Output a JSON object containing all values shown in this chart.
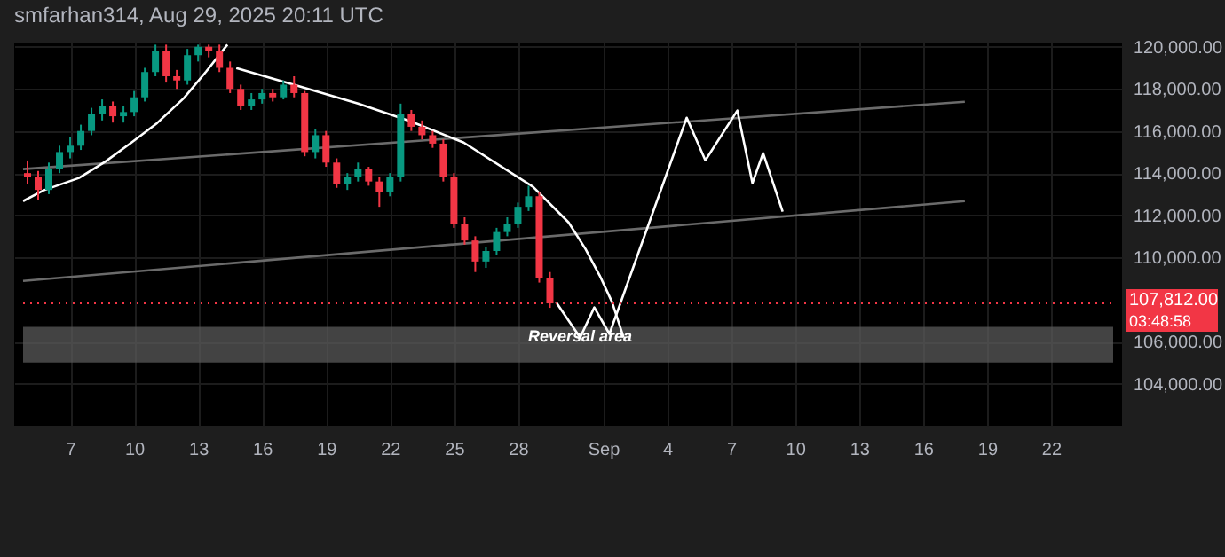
{
  "chart_data": {
    "type": "candlestick",
    "title": "smfarhan314, Aug 29, 2025 20:11 UTC",
    "x": [
      "2025-08-05T00:00",
      "2025-08-05T12:00",
      "2025-08-06T00:00",
      "2025-08-06T12:00",
      "2025-08-07T00:00",
      "2025-08-07T12:00",
      "2025-08-08T00:00",
      "2025-08-08T12:00",
      "2025-08-09T00:00",
      "2025-08-09T12:00",
      "2025-08-10T00:00",
      "2025-08-10T12:00",
      "2025-08-11T00:00",
      "2025-08-11T12:00",
      "2025-08-12T00:00",
      "2025-08-12T12:00",
      "2025-08-13T00:00",
      "2025-08-13T12:00",
      "2025-08-14T00:00",
      "2025-08-14T12:00",
      "2025-08-15T00:00",
      "2025-08-15T12:00",
      "2025-08-16T00:00",
      "2025-08-16T12:00",
      "2025-08-17T00:00",
      "2025-08-17T12:00",
      "2025-08-18T00:00",
      "2025-08-18T12:00",
      "2025-08-19T00:00",
      "2025-08-19T12:00",
      "2025-08-20T00:00",
      "2025-08-20T12:00",
      "2025-08-21T00:00",
      "2025-08-21T12:00",
      "2025-08-22T00:00",
      "2025-08-22T12:00",
      "2025-08-23T00:00",
      "2025-08-23T12:00",
      "2025-08-24T00:00",
      "2025-08-24T12:00",
      "2025-08-25T00:00",
      "2025-08-25T12:00",
      "2025-08-26T00:00",
      "2025-08-26T12:00",
      "2025-08-27T00:00",
      "2025-08-27T12:00",
      "2025-08-28T00:00",
      "2025-08-28T12:00",
      "2025-08-29T00:00",
      "2025-08-29T12:00"
    ],
    "ohlc": [
      [
        114000,
        114600,
        113500,
        113800
      ],
      [
        113800,
        114100,
        112700,
        113200
      ],
      [
        113200,
        114500,
        113000,
        114200
      ],
      [
        114200,
        115300,
        114000,
        115000
      ],
      [
        115000,
        115700,
        114700,
        115300
      ],
      [
        115300,
        116300,
        115100,
        116000
      ],
      [
        116000,
        117100,
        115800,
        116800
      ],
      [
        116800,
        117500,
        116500,
        117200
      ],
      [
        117200,
        117400,
        116400,
        116700
      ],
      [
        116700,
        117200,
        116400,
        116900
      ],
      [
        116900,
        117900,
        116700,
        117600
      ],
      [
        117600,
        119000,
        117400,
        118800
      ],
      [
        118800,
        120100,
        118600,
        119800
      ],
      [
        119800,
        120100,
        118300,
        118600
      ],
      [
        118600,
        118900,
        118000,
        118400
      ],
      [
        118400,
        119900,
        118200,
        119600
      ],
      [
        119600,
        120100,
        119300,
        120000
      ],
      [
        120000,
        120100,
        119500,
        119800
      ],
      [
        119800,
        120100,
        118800,
        119000
      ],
      [
        119000,
        119300,
        117800,
        118000
      ],
      [
        118000,
        118200,
        117000,
        117200
      ],
      [
        117200,
        117800,
        117000,
        117500
      ],
      [
        117500,
        118000,
        117300,
        117800
      ],
      [
        117800,
        118000,
        117400,
        117600
      ],
      [
        117600,
        118400,
        117500,
        118200
      ],
      [
        118200,
        118600,
        117600,
        117800
      ],
      [
        117800,
        117900,
        114800,
        115000
      ],
      [
        115000,
        116100,
        114700,
        115800
      ],
      [
        115800,
        116000,
        114300,
        114500
      ],
      [
        114500,
        114700,
        113300,
        113500
      ],
      [
        113500,
        114000,
        113200,
        113800
      ],
      [
        113800,
        114500,
        113600,
        114200
      ],
      [
        114200,
        114300,
        113400,
        113600
      ],
      [
        113600,
        113800,
        112400,
        113100
      ],
      [
        113100,
        114000,
        112900,
        113800
      ],
      [
        113800,
        117300,
        113600,
        116800
      ],
      [
        116800,
        117000,
        116000,
        116200
      ],
      [
        116200,
        116500,
        115600,
        115800
      ],
      [
        115800,
        116000,
        115200,
        115400
      ],
      [
        115400,
        115600,
        113600,
        113800
      ],
      [
        113800,
        114000,
        111400,
        111600
      ],
      [
        111600,
        111900,
        110600,
        110800
      ],
      [
        110800,
        111000,
        109300,
        109800
      ],
      [
        109800,
        110500,
        109500,
        110300
      ],
      [
        110300,
        111400,
        110100,
        111200
      ],
      [
        111200,
        111900,
        111000,
        111600
      ],
      [
        111600,
        112600,
        111400,
        112400
      ],
      [
        112400,
        113400,
        112200,
        112900
      ],
      [
        112900,
        113100,
        108800,
        109000
      ],
      [
        109000,
        109300,
        107600,
        107812
      ]
    ],
    "series": [
      {
        "type": "line",
        "color": "#6b6b6b",
        "x": [
          "2025-08-04T19:00",
          "2025-09-17T23:00"
        ],
        "values": [
          114190,
          117390
        ]
      },
      {
        "type": "line",
        "color": "#6b6b6b",
        "x": [
          "2025-08-04T19:00",
          "2025-09-17T23:00"
        ],
        "values": [
          108880,
          112670
        ]
      },
      {
        "type": "line",
        "color": "#ffffff",
        "x": [
          "2025-08-04T19:00",
          "2025-08-05T18:00",
          "2025-08-07T10:00",
          "2025-08-08T15:00",
          "2025-08-09T21:00",
          "2025-08-11T02:00",
          "2025-08-12T08:00",
          "2025-08-13T09:00",
          "2025-08-14T09:00"
        ],
        "values": [
          112670,
          113180,
          113770,
          114530,
          115450,
          116380,
          117560,
          118820,
          120100
        ]
      },
      {
        "type": "line",
        "color": "#ffffff",
        "x": [
          "2025-08-14T19:00",
          "2025-08-17T16:00",
          "2025-08-20T12:00",
          "2025-08-22T23:00",
          "2025-08-25T11:00",
          "2025-08-28T17:00",
          "2025-08-30T09:00",
          "2025-08-31T04:00",
          "2025-08-31T20:00",
          "2025-09-01T10:00",
          "2025-09-01T23:00"
        ],
        "values": [
          118990,
          118150,
          117300,
          116460,
          115450,
          113350,
          111660,
          110400,
          109140,
          107870,
          106190
        ]
      },
      {
        "type": "line",
        "color": "#ffffff",
        "x": [
          "2025-08-29T19:00",
          "2025-08-30T22:00",
          "2025-08-31T14:00",
          "2025-09-01T07:00",
          "2025-09-04T22:00",
          "2025-09-05T19:00",
          "2025-09-07T07:00",
          "2025-09-08T00:00",
          "2025-09-08T12:00",
          "2025-09-09T10:00"
        ],
        "values": [
          107870,
          106190,
          107620,
          106360,
          116630,
          114610,
          116970,
          113520,
          114950,
          112170
        ]
      }
    ],
    "bands": [
      {
        "axis": "y",
        "from": 105000,
        "to": 106700,
        "color": "#5a5a5a"
      }
    ],
    "ref_lines": [
      {
        "axis": "y",
        "value": 107812,
        "label": "107,812.00",
        "color": "#f23645",
        "line_style": "dotted"
      }
    ],
    "annotations": [
      {
        "text": "Reversal area",
        "x": "2025-08-30T22:00",
        "y": 106270
      },
      "03:48:58"
    ],
    "xlim": [
      "2025-08-04T19:00",
      "2025-09-24T22:00"
    ],
    "xticks": [
      {
        "value": "2025-08-07",
        "label": "7"
      },
      {
        "value": "2025-08-10",
        "label": "10"
      },
      {
        "value": "2025-08-13",
        "label": "13"
      },
      {
        "value": "2025-08-16",
        "label": "16"
      },
      {
        "value": "2025-08-19",
        "label": "19"
      },
      {
        "value": "2025-08-22",
        "label": "22"
      },
      {
        "value": "2025-08-25",
        "label": "25"
      },
      {
        "value": "2025-08-28",
        "label": "28"
      },
      {
        "value": "2025-09-01",
        "label": "Sep"
      },
      {
        "value": "2025-09-04",
        "label": "4"
      },
      {
        "value": "2025-09-07",
        "label": "7"
      },
      {
        "value": "2025-09-10",
        "label": "10"
      },
      {
        "value": "2025-09-13",
        "label": "13"
      },
      {
        "value": "2025-09-16",
        "label": "16"
      },
      {
        "value": "2025-09-19",
        "label": "19"
      },
      {
        "value": "2025-09-22",
        "label": "22"
      }
    ],
    "ylim": [
      102000,
      120200
    ],
    "yticks": [
      {
        "value": 104000,
        "label": "104,000.00"
      },
      {
        "value": 106000,
        "label": "106,000.00"
      },
      {
        "value": 110000,
        "label": "110,000.00"
      },
      {
        "value": 112000,
        "label": "112,000.00"
      },
      {
        "value": 114000,
        "label": "114,000.00"
      },
      {
        "value": 116000,
        "label": "116,000.00"
      },
      {
        "value": 118000,
        "label": "118,000.00"
      },
      {
        "value": 120000,
        "label": "120,000.00"
      }
    ],
    "grid": true,
    "marker": "none",
    "line_style": "solid"
  }
}
